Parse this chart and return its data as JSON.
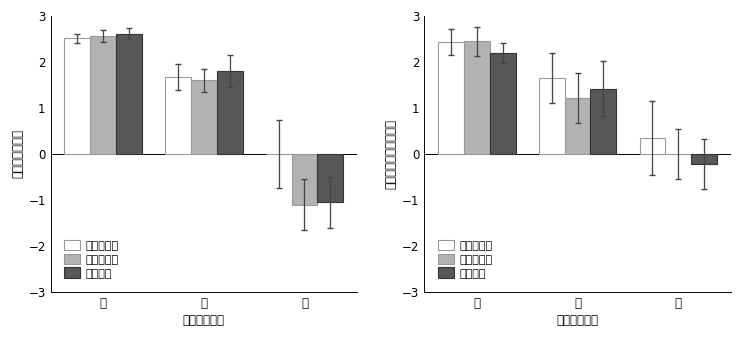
{
  "left": {
    "ylabel": "危険度の評定値",
    "xlabel": "画像の危険度",
    "categories": [
      "高",
      "中",
      "低"
    ],
    "conditions": [
      "同調高条件",
      "同調低条件",
      "統制条件"
    ],
    "bar_colors": [
      "#ffffff",
      "#b2b2b2",
      "#575757"
    ],
    "bar_edgecolors": [
      "#999999",
      "#999999",
      "#333333"
    ],
    "values": [
      [
        2.52,
        2.57,
        2.62
      ],
      [
        1.68,
        1.6,
        1.8
      ],
      [
        0.0,
        -1.1,
        -1.05
      ]
    ],
    "errors": [
      [
        0.1,
        0.13,
        0.12
      ],
      [
        0.28,
        0.25,
        0.35
      ],
      [
        0.75,
        0.55,
        0.55
      ]
    ],
    "ylim": [
      -3,
      3
    ],
    "yticks": [
      -3,
      -2,
      -1,
      0,
      1,
      2,
      3
    ]
  },
  "right": {
    "ylabel": "避難の必要性の評定値",
    "xlabel": "画像の危険度",
    "categories": [
      "高",
      "中",
      "低"
    ],
    "conditions": [
      "同調高条件",
      "同調低条件",
      "統制条件"
    ],
    "bar_colors": [
      "#ffffff",
      "#b2b2b2",
      "#575757"
    ],
    "bar_edgecolors": [
      "#999999",
      "#999999",
      "#333333"
    ],
    "values": [
      [
        2.43,
        2.45,
        2.2
      ],
      [
        1.65,
        1.22,
        1.42
      ],
      [
        0.35,
        0.0,
        -0.22
      ]
    ],
    "errors": [
      [
        0.28,
        0.32,
        0.22
      ],
      [
        0.55,
        0.55,
        0.6
      ],
      [
        0.8,
        0.55,
        0.55
      ]
    ],
    "ylim": [
      -3,
      3
    ],
    "yticks": [
      -3,
      -2,
      -1,
      0,
      1,
      2,
      3
    ]
  },
  "legend_labels": [
    "同調高条件",
    "同調低条件",
    "統制条件"
  ],
  "legend_colors": [
    "#ffffff",
    "#b2b2b2",
    "#575757"
  ],
  "legend_edgecolors": [
    "#999999",
    "#999999",
    "#333333"
  ],
  "fontsize_label": 8.5,
  "fontsize_tick": 8.5,
  "fontsize_legend": 8.0
}
